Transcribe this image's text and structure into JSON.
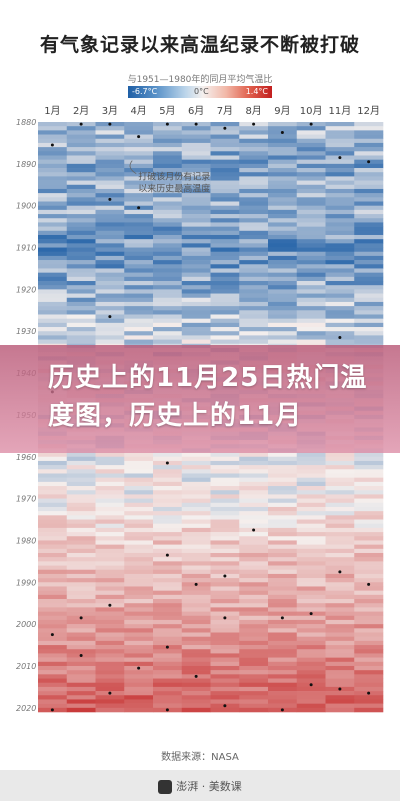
{
  "title": "有气象记录以来高温纪录不断被打破",
  "legend": {
    "label": "与1951—1980年的同月平均气温比",
    "min_label": "-6.7°C",
    "mid_label": "0°C",
    "max_label": "1.4°C"
  },
  "annotation": [
    "打破该月份有记录",
    "以来历史最高温度"
  ],
  "source": "数据来源：NASA",
  "banner_text": "历史上的11月25日热门温度图，历史上的11月",
  "footer_brand": "澎湃 · 美数课",
  "colors": {
    "cold": "#1f5fa6",
    "neutral": "#f5f0ee",
    "hot": "#c21e1e"
  },
  "chart_data": {
    "type": "heatmap",
    "title": "有气象记录以来高温纪录不断被打破",
    "x_categories": [
      "1月",
      "2月",
      "3月",
      "4月",
      "5月",
      "6月",
      "7月",
      "8月",
      "9月",
      "10月",
      "11月",
      "12月"
    ],
    "y_range": [
      1880,
      2020
    ],
    "y_ticks": [
      1880,
      1890,
      1900,
      1910,
      1920,
      1930,
      1940,
      1950,
      1960,
      1970,
      1980,
      1990,
      2000,
      2010,
      2020
    ],
    "color_scale": {
      "min": -6.7,
      "mid": 0,
      "max": 1.4,
      "unit": "°C"
    },
    "decade_trend": [
      {
        "year": 1880,
        "anomaly": -0.25
      },
      {
        "year": 1890,
        "anomaly": -0.35
      },
      {
        "year": 1900,
        "anomaly": -0.3
      },
      {
        "year": 1910,
        "anomaly": -0.45
      },
      {
        "year": 1920,
        "anomaly": -0.3
      },
      {
        "year": 1930,
        "anomaly": -0.15
      },
      {
        "year": 1940,
        "anomaly": 0.05
      },
      {
        "year": 1950,
        "anomaly": -0.05
      },
      {
        "year": 1960,
        "anomaly": 0.0
      },
      {
        "year": 1970,
        "anomaly": 0.05
      },
      {
        "year": 1980,
        "anomaly": 0.25
      },
      {
        "year": 1990,
        "anomaly": 0.4
      },
      {
        "year": 2000,
        "anomaly": 0.55
      },
      {
        "year": 2010,
        "anomaly": 0.75
      },
      {
        "year": 2020,
        "anomaly": 1.0
      }
    ],
    "record_markers": [
      {
        "year": 1880,
        "month": "2月"
      },
      {
        "year": 1880,
        "month": "3月"
      },
      {
        "year": 1880,
        "month": "5月"
      },
      {
        "year": 1880,
        "month": "6月"
      },
      {
        "year": 1880,
        "month": "8月"
      },
      {
        "year": 1880,
        "month": "10月"
      },
      {
        "year": 1881,
        "month": "7月"
      },
      {
        "year": 1882,
        "month": "9月"
      },
      {
        "year": 1883,
        "month": "4月"
      },
      {
        "year": 1885,
        "month": "1月"
      },
      {
        "year": 1888,
        "month": "11月"
      },
      {
        "year": 1889,
        "month": "12月"
      },
      {
        "year": 1898,
        "month": "3月"
      },
      {
        "year": 1900,
        "month": "4月"
      },
      {
        "year": 1926,
        "month": "3月"
      },
      {
        "year": 1931,
        "month": "11月"
      },
      {
        "year": 1944,
        "month": "1月"
      },
      {
        "year": 1961,
        "month": "5月"
      },
      {
        "year": 1977,
        "month": "8月"
      },
      {
        "year": 1983,
        "month": "5月"
      },
      {
        "year": 1987,
        "month": "11月"
      },
      {
        "year": 1988,
        "month": "7月"
      },
      {
        "year": 1990,
        "month": "6月"
      },
      {
        "year": 1990,
        "month": "12月"
      },
      {
        "year": 1995,
        "month": "3月"
      },
      {
        "year": 1997,
        "month": "10月"
      },
      {
        "year": 1998,
        "month": "2月"
      },
      {
        "year": 1998,
        "month": "7月"
      },
      {
        "year": 1998,
        "month": "9月"
      },
      {
        "year": 2002,
        "month": "1月"
      },
      {
        "year": 2005,
        "month": "5月"
      },
      {
        "year": 2007,
        "month": "2月"
      },
      {
        "year": 2010,
        "month": "4月"
      },
      {
        "year": 2012,
        "month": "6月"
      },
      {
        "year": 2014,
        "month": "10月"
      },
      {
        "year": 2015,
        "month": "11月"
      },
      {
        "year": 2016,
        "month": "3月"
      },
      {
        "year": 2016,
        "month": "12月"
      },
      {
        "year": 2019,
        "month": "7月"
      },
      {
        "year": 2020,
        "month": "1月"
      },
      {
        "year": 2020,
        "month": "5月"
      },
      {
        "year": 2020,
        "month": "9月"
      }
    ]
  }
}
